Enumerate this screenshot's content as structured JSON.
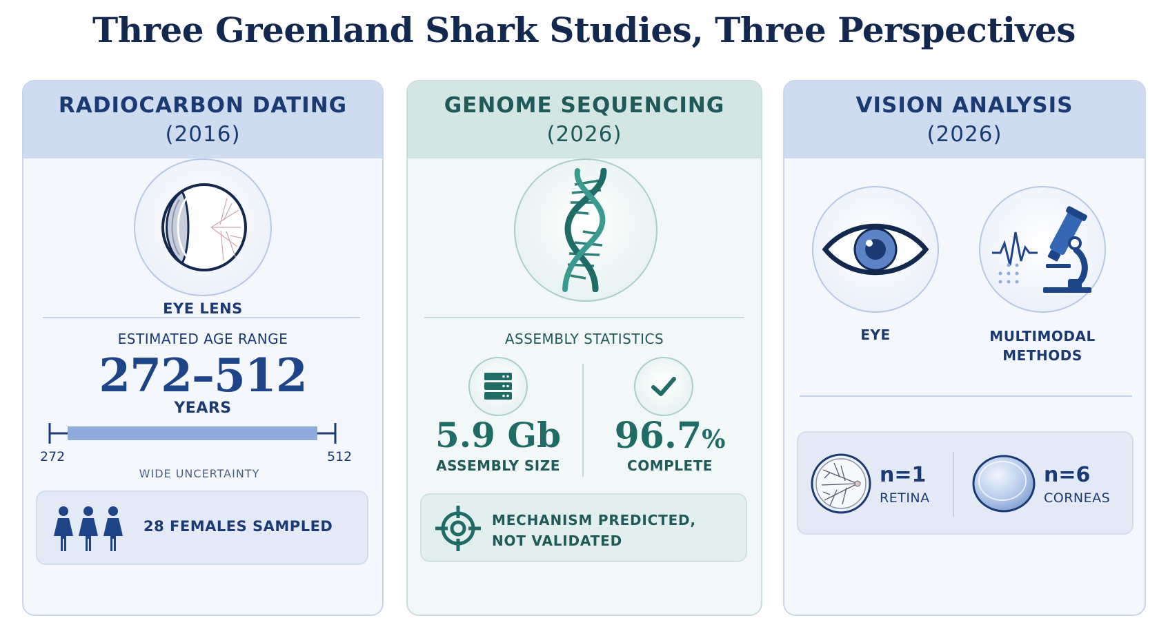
{
  "title": "Three Greenland Shark Studies, Three Perspectives",
  "colors": {
    "navy": "#1e4488",
    "teal": "#1f6b66",
    "bar": "#8eabdc"
  },
  "cards": [
    {
      "heading": "RADIOCARBON DATING",
      "year": "(2016)",
      "icon": "eye-lens-icon",
      "icon_label": "EYE LENS",
      "section_label": "ESTIMATED AGE RANGE",
      "range_value": "272–512",
      "range_unit": "YEARS",
      "bar_min": "272",
      "bar_max": "512",
      "bar_note": "WIDE UNCERTAINTY",
      "footer_icon": "female-figures-icon",
      "footer_text": "28 FEMALES SAMPLED"
    },
    {
      "heading": "GENOME SEQUENCING",
      "year": "(2026)",
      "icon": "dna-helix-icon",
      "section_label": "ASSEMBLY STATISTICS",
      "stats": [
        {
          "icon": "server-icon",
          "value": "5.9 Gb",
          "label": "ASSEMBLY SIZE"
        },
        {
          "icon": "checkmark-icon",
          "value": "96.7",
          "suffix": "%",
          "label": "COMPLETE"
        }
      ],
      "footer_icon": "crosshair-icon",
      "footer_text_1": "MECHANISM PREDICTED,",
      "footer_text_2": "NOT VALIDATED"
    },
    {
      "heading": "VISION ANALYSIS",
      "year": "(2026)",
      "icons": [
        {
          "icon": "eye-icon",
          "label": "EYE"
        },
        {
          "icon": "microscope-icon",
          "label_1": "MULTIMODAL",
          "label_2": "METHODS"
        }
      ],
      "samples": [
        {
          "icon": "retina-icon",
          "count": "n=1",
          "label": "RETINA"
        },
        {
          "icon": "cornea-icon",
          "count": "n=6",
          "label": "CORNEAS"
        }
      ]
    }
  ]
}
